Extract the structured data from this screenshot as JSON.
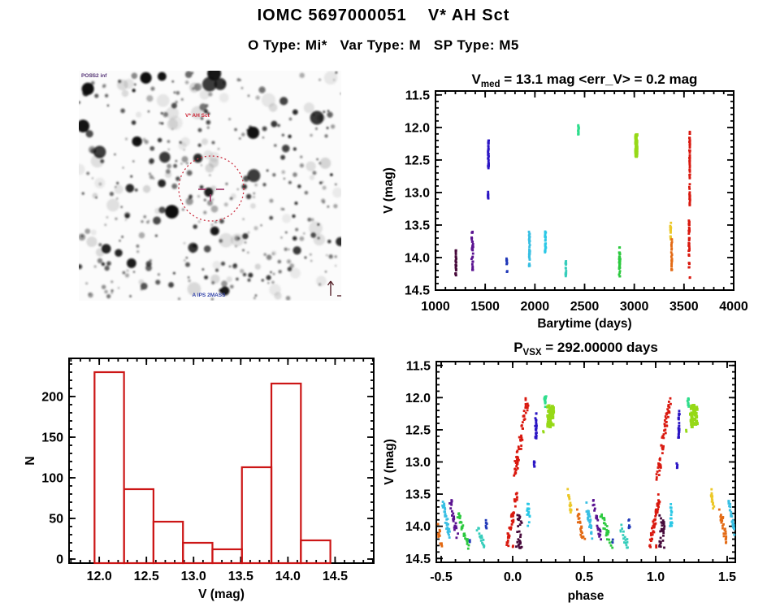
{
  "page": {
    "title": "IOMC 5697000051    V* AH Sct",
    "subtitle": "O Type: Mi*   Var Type: M   SP Type: M5"
  },
  "finder": {
    "survey_label": "POSS2 inf",
    "star_label": "V* AH Sct",
    "bottom_label": "A IPS 2MASS",
    "circle_color": "#cc3344",
    "marker_color": "#a03366",
    "compass": "north-east-arrows"
  },
  "palette": {
    "maroon": "#46093a",
    "purple": "#5b1391",
    "blue": "#2a15c4",
    "navy": "#2038b8",
    "cyan": "#38bfe3",
    "cyan2": "#2bc8e6",
    "teal": "#36cdbb",
    "springgreen": "#2edd8c",
    "green": "#2cc93f",
    "yellowgreen": "#96d917",
    "yellow": "#ecc829",
    "orange": "#e36a14",
    "red": "#d9190f"
  },
  "chart_data": [
    {
      "id": "lightcurve",
      "type": "scatter",
      "title": {
        "main": "V",
        "sub": "med",
        "rest": " = 13.1 mag <err_V> = 0.2 mag"
      },
      "xlabel": "Barytime (days)",
      "ylabel": "V (mag)",
      "xlim": [
        1000,
        4000
      ],
      "ylim": [
        11.44,
        14.5
      ],
      "y_up": false,
      "xticks": [
        1000,
        1500,
        2000,
        2500,
        3000,
        3500,
        4000
      ],
      "xtick_labels": [
        "1000",
        "1500",
        "2000",
        "2500",
        "3000",
        "3500",
        "4000"
      ],
      "yticks": [
        11.5,
        12.0,
        12.5,
        13.0,
        13.5,
        14.0,
        14.5
      ],
      "ytick_labels": [
        "11.5",
        "12.0",
        "12.5",
        "13.0",
        "13.5",
        "14.0",
        "14.5"
      ],
      "x_minor_step": 100,
      "y_minor_step": 0.1,
      "clusters": [
        {
          "x": 1205,
          "spread": 6,
          "v": [
            13.85,
            14.3
          ],
          "n": 26,
          "color": "maroon",
          "trend": "none"
        },
        {
          "x": 1372,
          "spread": 12,
          "v": [
            13.6,
            14.2
          ],
          "n": 32,
          "color": "purple",
          "trend": "none"
        },
        {
          "x": 1532,
          "spread": 5,
          "v": [
            12.2,
            12.63
          ],
          "n": 34,
          "color": "blue",
          "trend": "none"
        },
        {
          "x": 1530,
          "spread": 4,
          "v": [
            12.95,
            13.1
          ],
          "n": 8,
          "color": "blue",
          "trend": "none"
        },
        {
          "x": 1718,
          "spread": 9,
          "v": [
            14.0,
            14.27
          ],
          "n": 11,
          "color": "navy",
          "trend": "none"
        },
        {
          "x": 1945,
          "spread": 6,
          "v": [
            13.6,
            14.15
          ],
          "n": 36,
          "color": "cyan",
          "trend": "none"
        },
        {
          "x": 2105,
          "spread": 6,
          "v": [
            13.6,
            13.92
          ],
          "n": 30,
          "color": "cyan2",
          "trend": "none"
        },
        {
          "x": 2312,
          "spread": 5,
          "v": [
            14.02,
            14.3
          ],
          "n": 18,
          "color": "teal",
          "trend": "none"
        },
        {
          "x": 2438,
          "spread": 5,
          "v": [
            11.95,
            12.12
          ],
          "n": 16,
          "color": "springgreen",
          "trend": "none"
        },
        {
          "x": 2852,
          "spread": 8,
          "v": [
            13.82,
            14.3
          ],
          "n": 36,
          "color": "green",
          "trend": "none"
        },
        {
          "x": 3020,
          "spread": 7,
          "v": [
            12.1,
            12.46
          ],
          "n": 32,
          "color": "yellowgreen",
          "trend": "blob"
        },
        {
          "x": 3366,
          "spread": 5,
          "v": [
            13.45,
            13.72
          ],
          "n": 20,
          "color": "yellow",
          "trend": "none"
        },
        {
          "x": 3376,
          "spread": 5,
          "v": [
            13.72,
            14.2
          ],
          "n": 26,
          "color": "orange",
          "trend": "none"
        },
        {
          "x": 3558,
          "spread": 5,
          "v": [
            12.05,
            13.25
          ],
          "n": 60,
          "color": "red",
          "trend": "none"
        },
        {
          "x": 3552,
          "spread": 6,
          "v": [
            13.42,
            14.18
          ],
          "n": 40,
          "color": "red",
          "trend": "none"
        },
        {
          "x": 3560,
          "spread": 2,
          "v": [
            14.28,
            14.33
          ],
          "n": 2,
          "color": "red",
          "trend": "none"
        }
      ]
    },
    {
      "id": "histogram",
      "type": "bar",
      "xlabel": "V (mag)",
      "ylabel": "N",
      "xlim": [
        11.68,
        14.91
      ],
      "ylim": [
        -5,
        247
      ],
      "y_up": true,
      "bin_start": 11.95,
      "bin_width": 0.3125,
      "values": [
        230,
        86,
        46,
        20,
        12,
        113,
        216,
        23
      ],
      "xticks": [
        12.0,
        12.5,
        13.0,
        13.5,
        14.0,
        14.5
      ],
      "xtick_labels": [
        "12.0",
        "12.5",
        "13.0",
        "13.5",
        "14.0",
        "14.5"
      ],
      "yticks": [
        0,
        50,
        100,
        150,
        200
      ],
      "ytick_labels": [
        "0",
        "50",
        "100",
        "150",
        "200"
      ],
      "x_minor_step": 0.1,
      "y_minor_step": 10,
      "bar_color": "#cc1616"
    },
    {
      "id": "phase",
      "type": "scatter",
      "title": {
        "main": "P",
        "sub": "VSX",
        "rest": " = 292.00000 days"
      },
      "xlabel": "phase",
      "ylabel": "V (mag)",
      "fold_period_days": 292.0,
      "xlim": [
        -0.534,
        1.557
      ],
      "ylim": [
        11.44,
        14.56
      ],
      "y_up": false,
      "xticks": [
        -0.5,
        0.0,
        0.5,
        1.0,
        1.5
      ],
      "xtick_labels": [
        "-0.5",
        "0.0",
        "0.5",
        "1.0",
        "1.5"
      ],
      "yticks": [
        11.5,
        12.0,
        12.5,
        13.0,
        13.5,
        14.0,
        14.5
      ],
      "ytick_labels": [
        "11.5",
        "12.0",
        "12.5",
        "13.0",
        "13.5",
        "14.0",
        "14.5"
      ],
      "x_minor_step": 0.1,
      "y_minor_step": 0.1,
      "clusters": [
        {
          "phase": 0.995,
          "spread": 0.035,
          "v": [
            13.5,
            14.3
          ],
          "n": 48,
          "color": "red",
          "trend": "rise"
        },
        {
          "phase": 0.045,
          "spread": 0.024,
          "v": [
            13.82,
            14.34
          ],
          "n": 30,
          "color": "maroon",
          "trend": "none"
        },
        {
          "phase": 0.055,
          "spread": 0.045,
          "v": [
            12.05,
            13.26
          ],
          "n": 58,
          "color": "red",
          "trend": "rise"
        },
        {
          "phase": 0.002,
          "spread": 0.004,
          "v": [
            14.28,
            14.33
          ],
          "n": 2,
          "color": "red",
          "trend": "none"
        },
        {
          "phase": 0.11,
          "spread": 0.011,
          "v": [
            13.62,
            14.0
          ],
          "n": 16,
          "color": "cyan2",
          "trend": "none"
        },
        {
          "phase": 0.163,
          "spread": 0.006,
          "v": [
            12.2,
            12.65
          ],
          "n": 26,
          "color": "blue",
          "trend": "none"
        },
        {
          "phase": 0.15,
          "spread": 0.004,
          "v": [
            12.98,
            13.1
          ],
          "n": 6,
          "color": "blue",
          "trend": "none"
        },
        {
          "phase": 0.228,
          "spread": 0.008,
          "v": [
            11.96,
            12.15
          ],
          "n": 14,
          "color": "springgreen",
          "trend": "none"
        },
        {
          "phase": 0.265,
          "spread": 0.027,
          "v": [
            12.12,
            12.46
          ],
          "n": 34,
          "color": "yellowgreen",
          "trend": "blob"
        },
        {
          "phase": 0.215,
          "spread": 0.004,
          "v": [
            12.5,
            12.56
          ],
          "n": 2,
          "color": "yellowgreen",
          "trend": "none"
        },
        {
          "phase": 0.4,
          "spread": 0.012,
          "v": [
            13.46,
            13.82
          ],
          "n": 18,
          "color": "yellow",
          "trend": "fall"
        },
        {
          "phase": 0.475,
          "spread": 0.027,
          "v": [
            13.72,
            14.28
          ],
          "n": 26,
          "color": "orange",
          "trend": "fall"
        },
        {
          "phase": 0.535,
          "spread": 0.022,
          "v": [
            13.62,
            14.16
          ],
          "n": 34,
          "color": "cyan",
          "trend": "fall"
        },
        {
          "phase": 0.59,
          "spread": 0.025,
          "v": [
            13.6,
            14.2
          ],
          "n": 24,
          "color": "purple",
          "trend": "fall"
        },
        {
          "phase": 0.655,
          "spread": 0.035,
          "v": [
            13.8,
            14.32
          ],
          "n": 34,
          "color": "green",
          "trend": "fall"
        },
        {
          "phase": 0.7,
          "spread": 0.003,
          "v": [
            14.2,
            14.26
          ],
          "n": 2,
          "color": "navy",
          "trend": "none"
        },
        {
          "phase": 0.78,
          "spread": 0.025,
          "v": [
            14.02,
            14.32
          ],
          "n": 16,
          "color": "teal",
          "trend": "fall"
        },
        {
          "phase": 0.815,
          "spread": 0.007,
          "v": [
            13.88,
            14.06
          ],
          "n": 6,
          "color": "navy",
          "trend": "none"
        }
      ]
    }
  ]
}
